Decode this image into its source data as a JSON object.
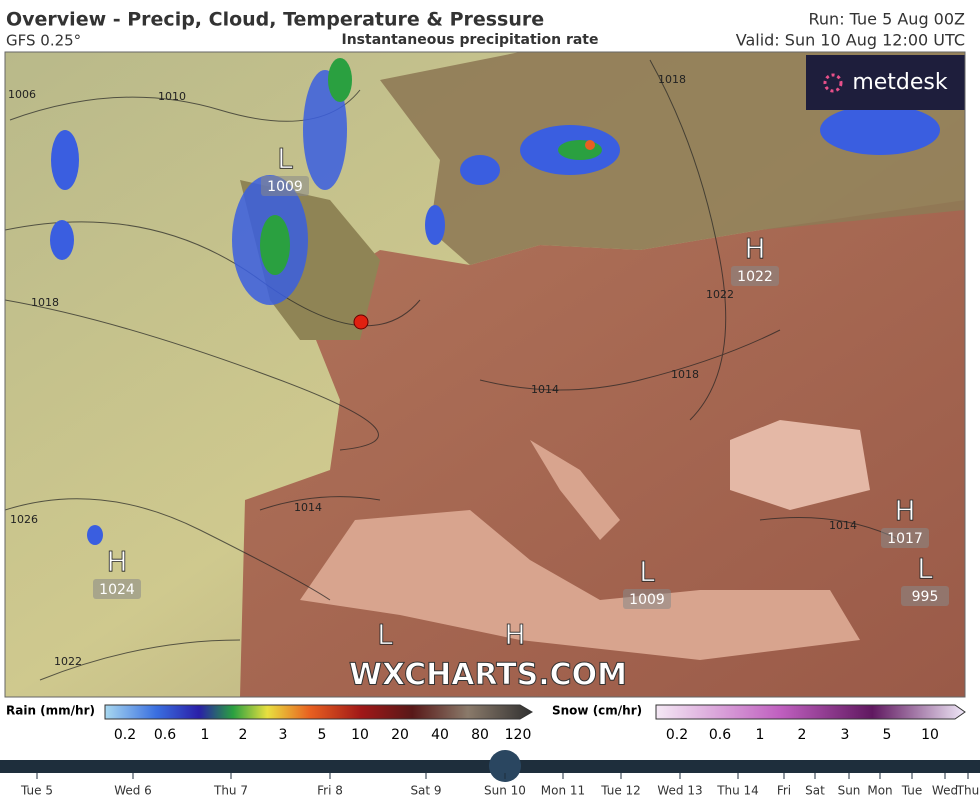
{
  "header": {
    "title": "Overview - Precip, Cloud, Temperature & Pressure",
    "model": "GFS 0.25°",
    "subtitle": "Instantaneous precipitation rate",
    "run": "Run: Tue 5 Aug 00Z",
    "valid": "Valid: Sun 10 Aug 12:00 UTC"
  },
  "logo": "metdesk",
  "watermark": "WXCHARTS.COM",
  "isobar_labels": [
    "1006",
    "1010",
    "1018",
    "1026",
    "1022",
    "1014",
    "1014",
    "1018",
    "1022",
    "1018",
    "1014"
  ],
  "pressure_centers": [
    {
      "symbol": "L",
      "value": "1009"
    },
    {
      "symbol": "H",
      "value": "1022"
    },
    {
      "symbol": "H",
      "value": "1024"
    },
    {
      "symbol": "L",
      "value": "1009"
    },
    {
      "symbol": "H",
      "value": "1017"
    },
    {
      "symbol": "L",
      "value": "995"
    },
    {
      "symbol": "L"
    },
    {
      "symbol": "H"
    }
  ],
  "rain_legend": {
    "title": "Rain (mm/hr)",
    "ticks": [
      "0.2",
      "0.6",
      "1",
      "2",
      "3",
      "5",
      "10",
      "20",
      "40",
      "80",
      "120"
    ]
  },
  "snow_legend": {
    "title": "Snow (cm/hr)",
    "ticks": [
      "0.2",
      "0.6",
      "1",
      "2",
      "3",
      "5",
      "10"
    ]
  },
  "timeline": [
    "Tue 5",
    "Wed 6",
    "Thu 7",
    "Fri 8",
    "Sat 9",
    "Sun 10",
    "Mon 11",
    "Tue 12",
    "Wed 13",
    "Thu 14",
    "Fri",
    "Sat",
    "Sun",
    "Mon",
    "Tue",
    "Wed",
    "Thu"
  ]
}
